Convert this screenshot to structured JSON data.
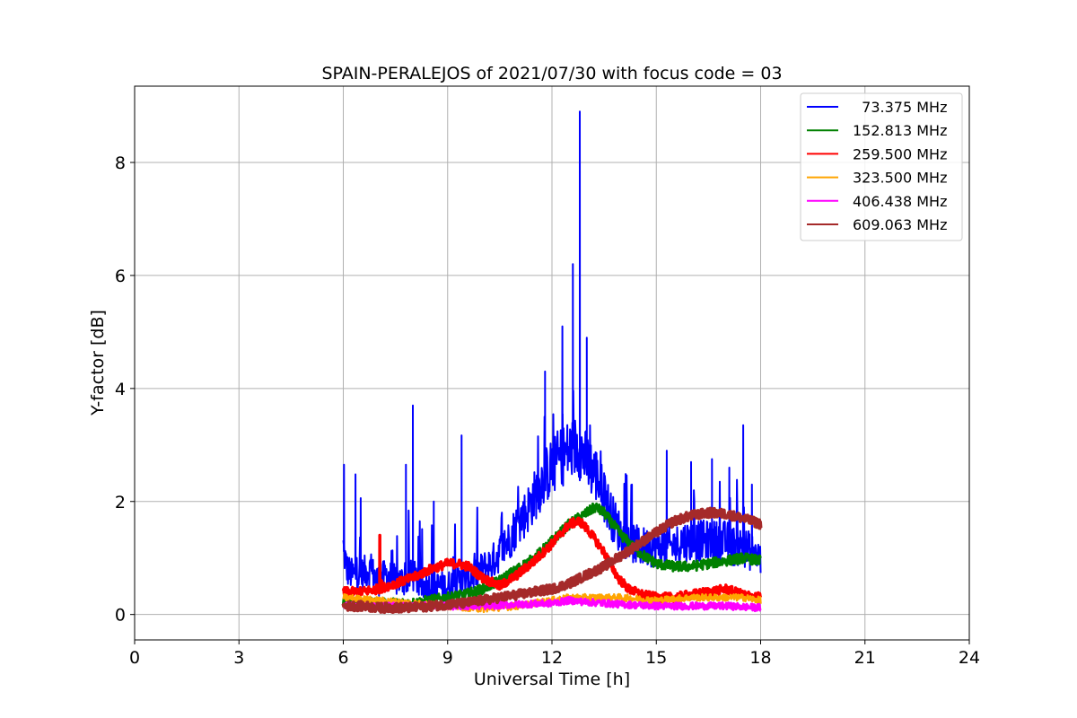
{
  "chart_data": {
    "type": "line",
    "title": "SPAIN-PERALEJOS of 2021/07/30 with focus code = 03",
    "xlabel": "Universal Time [h]",
    "ylabel": "Y-factor [dB]",
    "xlim": [
      0,
      24
    ],
    "ylim": [
      -0.45,
      9.35
    ],
    "xticks": [
      "0",
      "3",
      "6",
      "9",
      "12",
      "15",
      "18",
      "21",
      "24"
    ],
    "yticks": [
      "0",
      "2",
      "4",
      "6",
      "8"
    ],
    "grid": true,
    "legend_position": "top-right",
    "series": [
      {
        "name": "  73.375 MHz",
        "color": "#0000ff",
        "x": [
          6.0,
          6.1,
          6.25,
          6.5,
          6.75,
          7.0,
          7.25,
          7.5,
          7.75,
          8.0,
          8.25,
          8.5,
          8.75,
          9.0,
          9.25,
          9.5,
          9.75,
          10.0,
          10.25,
          10.5,
          10.75,
          11.0,
          11.25,
          11.5,
          11.75,
          12.0,
          12.25,
          12.5,
          12.75,
          13.0,
          13.25,
          13.5,
          13.75,
          14.0,
          14.25,
          14.5,
          14.75,
          15.0,
          15.25,
          15.5,
          15.75,
          16.0,
          16.25,
          16.5,
          16.75,
          17.0,
          17.25,
          17.5,
          17.75,
          18.0
        ],
        "y": [
          1.2,
          0.8,
          0.7,
          0.7,
          0.8,
          0.6,
          0.7,
          0.6,
          0.6,
          0.7,
          0.5,
          0.5,
          0.5,
          0.5,
          0.6,
          0.6,
          0.7,
          0.8,
          0.9,
          1.1,
          1.3,
          1.6,
          1.8,
          2.1,
          2.4,
          2.6,
          2.8,
          2.9,
          3.0,
          2.7,
          2.5,
          2.1,
          1.7,
          1.4,
          1.3,
          1.2,
          1.2,
          1.2,
          1.2,
          1.2,
          1.3,
          1.3,
          1.3,
          1.3,
          1.3,
          1.3,
          1.2,
          1.2,
          1.1,
          1.0
        ],
        "spikes": [
          [
            6.02,
            2.65
          ],
          [
            6.35,
            2.48
          ],
          [
            6.5,
            2.06
          ],
          [
            7.8,
            2.65
          ],
          [
            8.0,
            3.7
          ],
          [
            8.6,
            2.0
          ],
          [
            9.4,
            3.17
          ],
          [
            11.8,
            4.3
          ],
          [
            12.3,
            5.1
          ],
          [
            12.6,
            6.2
          ],
          [
            12.8,
            8.9
          ],
          [
            13.0,
            4.9
          ],
          [
            13.5,
            2.5
          ],
          [
            14.3,
            2.3
          ],
          [
            15.3,
            2.9
          ],
          [
            16.0,
            2.7
          ],
          [
            16.6,
            2.75
          ],
          [
            17.1,
            2.6
          ],
          [
            17.5,
            3.35
          ],
          [
            17.75,
            2.3
          ]
        ]
      },
      {
        "name": "152.813 MHz",
        "color": "#008000",
        "x": [
          6.0,
          6.5,
          7.0,
          7.5,
          8.0,
          8.5,
          9.0,
          9.5,
          10.0,
          10.5,
          11.0,
          11.5,
          12.0,
          12.5,
          13.0,
          13.25,
          13.5,
          14.0,
          14.5,
          15.0,
          15.5,
          16.0,
          16.5,
          17.0,
          17.5,
          18.0
        ],
        "y": [
          0.2,
          0.2,
          0.2,
          0.2,
          0.2,
          0.25,
          0.3,
          0.35,
          0.45,
          0.6,
          0.8,
          1.0,
          1.3,
          1.6,
          1.8,
          1.9,
          1.8,
          1.4,
          1.1,
          0.9,
          0.85,
          0.85,
          0.9,
          0.95,
          1.0,
          0.95
        ]
      },
      {
        "name": "259.500 MHz",
        "color": "#ff0000",
        "x": [
          6.0,
          6.5,
          7.0,
          7.5,
          8.0,
          8.5,
          9.0,
          9.3,
          9.6,
          10.0,
          10.5,
          11.0,
          11.5,
          12.0,
          12.5,
          12.8,
          13.1,
          13.5,
          13.9,
          14.2,
          14.6,
          15.0,
          15.5,
          16.0,
          16.5,
          17.0,
          17.5,
          18.0
        ],
        "y": [
          0.4,
          0.4,
          0.45,
          0.55,
          0.65,
          0.8,
          0.9,
          0.9,
          0.85,
          0.65,
          0.5,
          0.7,
          0.95,
          1.25,
          1.6,
          1.65,
          1.45,
          1.1,
          0.65,
          0.45,
          0.35,
          0.3,
          0.3,
          0.35,
          0.4,
          0.45,
          0.35,
          0.3
        ],
        "spikes": [
          [
            7.05,
            1.4
          ],
          [
            7.1,
            0.6
          ]
        ]
      },
      {
        "name": "323.500 MHz",
        "color": "#ffa500",
        "x": [
          6.0,
          7.0,
          8.0,
          9.0,
          10.0,
          11.0,
          12.0,
          12.5,
          13.0,
          13.5,
          14.0,
          15.0,
          16.0,
          17.0,
          17.5,
          18.0
        ],
        "y": [
          0.3,
          0.25,
          0.2,
          0.15,
          0.1,
          0.15,
          0.25,
          0.3,
          0.3,
          0.3,
          0.3,
          0.25,
          0.3,
          0.3,
          0.3,
          0.25
        ]
      },
      {
        "name": "406.438 MHz",
        "color": "#ff00ff",
        "x": [
          6.0,
          7.0,
          8.0,
          9.0,
          10.0,
          11.0,
          12.0,
          12.5,
          13.0,
          13.5,
          14.0,
          15.0,
          16.0,
          17.0,
          18.0
        ],
        "y": [
          0.15,
          0.15,
          0.15,
          0.15,
          0.15,
          0.18,
          0.2,
          0.25,
          0.22,
          0.2,
          0.18,
          0.15,
          0.15,
          0.15,
          0.12
        ]
      },
      {
        "name": "609.063 MHz",
        "color": "#a52a2a",
        "x": [
          6.0,
          6.5,
          7.0,
          7.5,
          8.0,
          8.5,
          9.0,
          9.5,
          10.0,
          10.5,
          11.0,
          11.5,
          12.0,
          12.5,
          13.0,
          13.5,
          14.0,
          14.5,
          15.0,
          15.5,
          16.0,
          16.5,
          17.0,
          17.5,
          18.0
        ],
        "y": [
          0.15,
          0.15,
          0.12,
          0.12,
          0.12,
          0.15,
          0.18,
          0.2,
          0.25,
          0.3,
          0.35,
          0.4,
          0.45,
          0.55,
          0.7,
          0.85,
          1.05,
          1.25,
          1.45,
          1.65,
          1.75,
          1.8,
          1.78,
          1.7,
          1.6
        ]
      }
    ]
  }
}
